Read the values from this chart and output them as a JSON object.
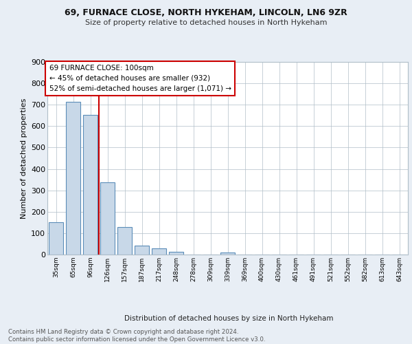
{
  "title1": "69, FURNACE CLOSE, NORTH HYKEHAM, LINCOLN, LN6 9ZR",
  "title2": "Size of property relative to detached houses in North Hykeham",
  "xlabel": "Distribution of detached houses by size in North Hykeham",
  "ylabel": "Number of detached properties",
  "categories": [
    "35sqm",
    "65sqm",
    "96sqm",
    "126sqm",
    "157sqm",
    "187sqm",
    "217sqm",
    "248sqm",
    "278sqm",
    "309sqm",
    "339sqm",
    "369sqm",
    "400sqm",
    "430sqm",
    "461sqm",
    "491sqm",
    "521sqm",
    "552sqm",
    "582sqm",
    "613sqm",
    "643sqm"
  ],
  "values": [
    150,
    714,
    651,
    338,
    129,
    42,
    30,
    12,
    0,
    0,
    9,
    0,
    0,
    0,
    0,
    0,
    0,
    0,
    0,
    0,
    0
  ],
  "bar_color": "#c8d8e8",
  "bar_edge_color": "#5b8db8",
  "red_line_x": 2.5,
  "annotation_text": "69 FURNACE CLOSE: 100sqm\n← 45% of detached houses are smaller (932)\n52% of semi-detached houses are larger (1,071) →",
  "annotation_box_color": "#ffffff",
  "annotation_box_edge": "#cc0000",
  "vline_color": "#cc0000",
  "ylim": [
    0,
    900
  ],
  "yticks": [
    0,
    100,
    200,
    300,
    400,
    500,
    600,
    700,
    800,
    900
  ],
  "footer": "Contains HM Land Registry data © Crown copyright and database right 2024.\nContains public sector information licensed under the Open Government Licence v3.0.",
  "bg_color": "#e8eef5",
  "plot_bg_color": "#ffffff",
  "grid_color": "#b0bec8"
}
